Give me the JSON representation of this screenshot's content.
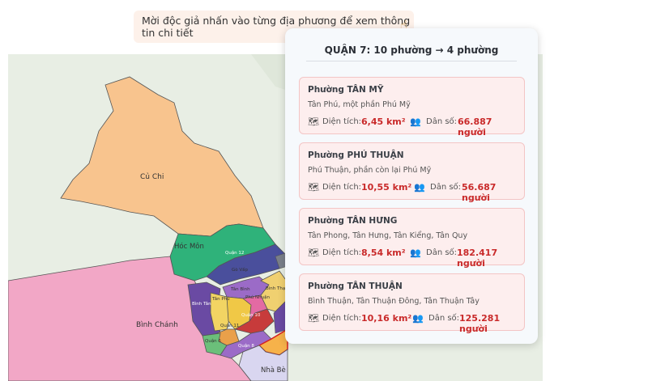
{
  "hint": {
    "text": "Mời độc giả nhấn vào từng địa phương để xem thông tin chi tiết",
    "icon": "pointing-hand-icon"
  },
  "map": {
    "labels": {
      "cu_chi": "Củ Chi",
      "hoc_mon": "Hóc Môn",
      "binh_chanh": "Bình Chánh",
      "nha_be": "Nhà Bè",
      "quan_12": "Quận 12",
      "go_vap": "Gò Vấp",
      "tan_binh": "Tân Bình",
      "tan_phu": "Tân Phú",
      "phu_nhuan": "Phú Nhuận",
      "binh_thanh": "Bình Thạnh",
      "binh_tan": "Bình Tân",
      "quan_6": "Quận 6",
      "quan_8": "Quận 8",
      "quan_10": "Quận 10",
      "quan_11": "Quận 11"
    },
    "colors": {
      "cu_chi": "#f8c48e",
      "hoc_mon": "#2fb27a",
      "binh_chanh": "#f2a7c6",
      "nha_be": "#d9d6f0",
      "inner_blue": "#4a4f9c",
      "inner_yellow": "#f2d463",
      "inner_purple": "#9b6bc7",
      "inner_red": "#c73b3b"
    }
  },
  "popup": {
    "title": "QUẬN 7: 10 phường → 4 phường",
    "wards": [
      {
        "name": "Phường TÂN MỸ",
        "desc": "Tân Phú, một phần Phú Mỹ",
        "area_label": "Diện tích:",
        "area": "6,45 km²",
        "pop_label": "Dân số:",
        "pop": "66.887 người"
      },
      {
        "name": "Phường PHÚ THUẬN",
        "desc": "Phú Thuận, phần còn lại Phú Mỹ",
        "area_label": "Diện tích:",
        "area": "10,55 km²",
        "pop_label": "Dân số:",
        "pop": "56.687 người"
      },
      {
        "name": "Phường TÂN HƯNG",
        "desc": "Tân Phong, Tân Hưng, Tân Kiểng, Tân Quy",
        "area_label": "Diện tích:",
        "area": "8,54 km²",
        "pop_label": "Dân số:",
        "pop": "182.417 người"
      },
      {
        "name": "Phường TÂN THUẬN",
        "desc": "Bình Thuận, Tân Thuận Đông, Tân Thuận Tây",
        "area_label": "Diện tích:",
        "area": "10,16 km²",
        "pop_label": "Dân số:",
        "pop": "125.281 người"
      }
    ]
  }
}
